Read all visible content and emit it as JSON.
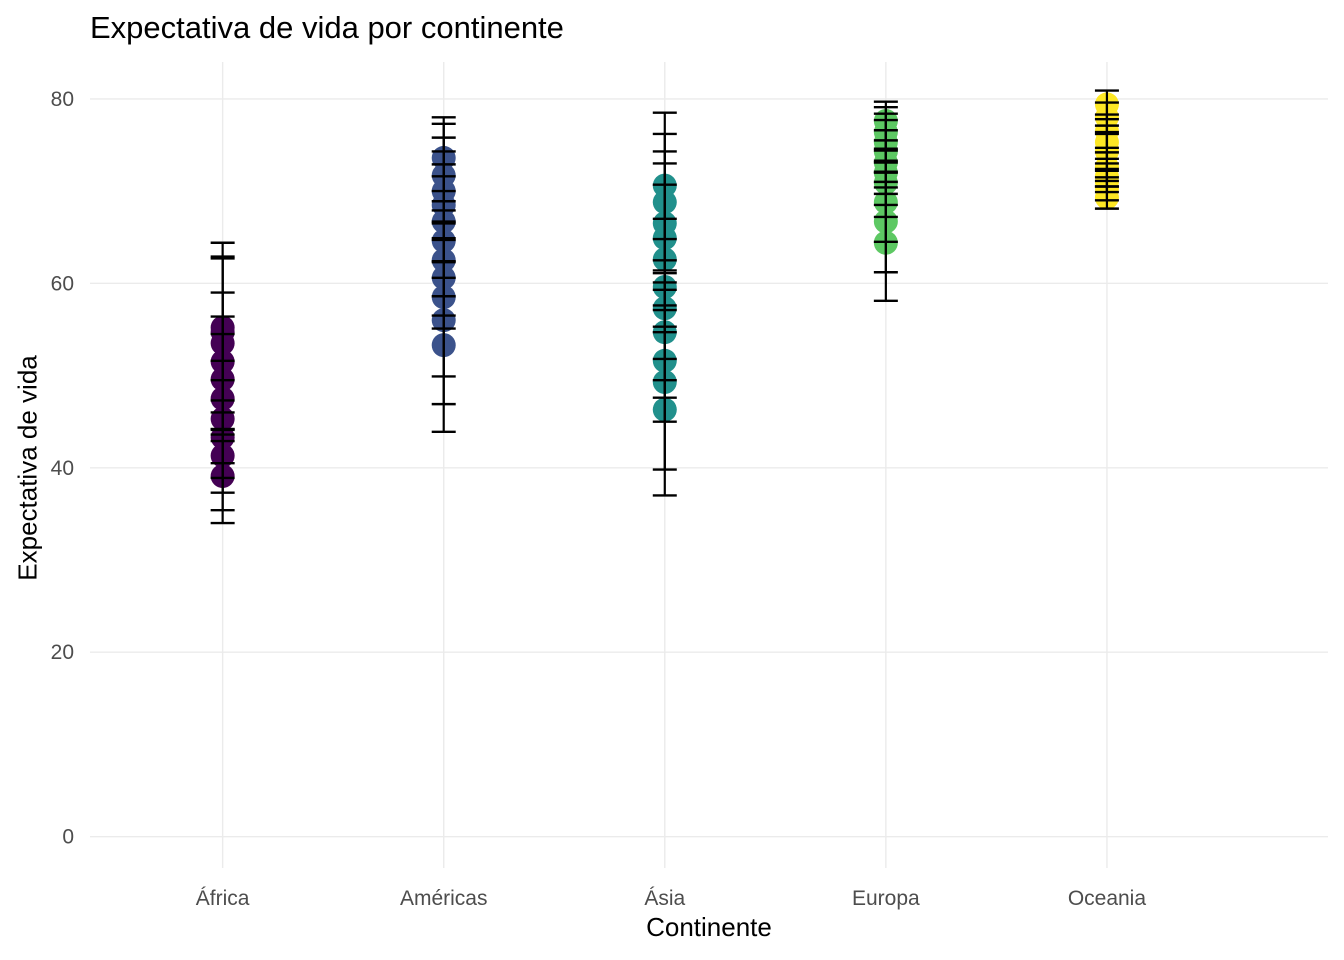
{
  "chart_data": {
    "type": "scatter",
    "title": "Expectativa de vida por continente",
    "xlabel": "Continente",
    "ylabel": "Expectativa de vida",
    "ylim": [
      -3.4,
      84
    ],
    "y_ticks": [
      0,
      20,
      40,
      60,
      80
    ],
    "grid": true,
    "categories": [
      "África",
      "Américas",
      "Ásia",
      "Europa",
      "Oceania"
    ],
    "colors": [
      "#440154",
      "#3b528b",
      "#21908c",
      "#5dc863",
      "#fde725"
    ],
    "series": [
      {
        "category": "África",
        "points": [
          {
            "y": 39.1,
            "low": 34.0,
            "high": 44.2
          },
          {
            "y": 41.3,
            "low": 35.4,
            "high": 47.3
          },
          {
            "y": 43.3,
            "low": 37.3,
            "high": 49.5
          },
          {
            "y": 45.3,
            "low": 38.9,
            "high": 51.6
          },
          {
            "y": 47.5,
            "low": 40.5,
            "high": 54.5
          },
          {
            "y": 49.6,
            "low": 42.9,
            "high": 56.4
          },
          {
            "y": 51.5,
            "low": 43.6,
            "high": 59.0
          },
          {
            "y": 53.5,
            "low": 44.1,
            "high": 62.7
          },
          {
            "y": 54.7,
            "low": 44.2,
            "high": 62.9
          },
          {
            "y": 55.2,
            "low": 46.0,
            "high": 64.4
          }
        ]
      },
      {
        "category": "Américas",
        "points": [
          {
            "y": 53.3,
            "low": 43.9,
            "high": 62.4
          },
          {
            "y": 56.0,
            "low": 46.9,
            "high": 64.9
          },
          {
            "y": 58.5,
            "low": 49.9,
            "high": 66.7
          },
          {
            "y": 60.6,
            "low": 55.1,
            "high": 67.9
          },
          {
            "y": 62.5,
            "low": 56.5,
            "high": 70.0
          },
          {
            "y": 64.6,
            "low": 58.6,
            "high": 71.6
          },
          {
            "y": 66.7,
            "low": 60.6,
            "high": 72.9
          },
          {
            "y": 68.5,
            "low": 62.3,
            "high": 74.3
          },
          {
            "y": 70.0,
            "low": 64.7,
            "high": 75.8
          },
          {
            "y": 71.7,
            "low": 66.5,
            "high": 77.3
          },
          {
            "y": 73.6,
            "low": 68.9,
            "high": 78.0
          }
        ]
      },
      {
        "category": "Ásia",
        "points": [
          {
            "y": 46.3,
            "low": 37.0,
            "high": 54.7
          },
          {
            "y": 49.3,
            "low": 39.8,
            "high": 57.6
          },
          {
            "y": 51.6,
            "low": 45.0,
            "high": 60.1
          },
          {
            "y": 54.7,
            "low": 47.6,
            "high": 61.4
          },
          {
            "y": 57.3,
            "low": 49.5,
            "high": 64.8
          },
          {
            "y": 59.6,
            "low": 51.8,
            "high": 67.0
          },
          {
            "y": 62.6,
            "low": 55.3,
            "high": 70.7
          },
          {
            "y": 64.9,
            "low": 57.1,
            "high": 73.0
          },
          {
            "y": 66.5,
            "low": 59.3,
            "high": 74.3
          },
          {
            "y": 68.8,
            "low": 61.1,
            "high": 76.2
          },
          {
            "y": 70.6,
            "low": 62.5,
            "high": 78.5
          }
        ]
      },
      {
        "category": "Europa",
        "points": [
          {
            "y": 64.4,
            "low": 58.1,
            "high": 70.4
          },
          {
            "y": 66.7,
            "low": 61.2,
            "high": 72.0
          },
          {
            "y": 68.8,
            "low": 64.5,
            "high": 73.3
          },
          {
            "y": 70.9,
            "low": 67.2,
            "high": 74.6
          },
          {
            "y": 72.0,
            "low": 68.5,
            "high": 75.5
          },
          {
            "y": 73.1,
            "low": 69.7,
            "high": 76.6
          },
          {
            "y": 74.3,
            "low": 71.0,
            "high": 77.7
          },
          {
            "y": 75.3,
            "low": 72.1,
            "high": 78.4
          },
          {
            "y": 76.4,
            "low": 73.1,
            "high": 79.1
          },
          {
            "y": 77.6,
            "low": 74.4,
            "high": 79.7
          }
        ]
      },
      {
        "category": "Oceania",
        "points": [
          {
            "y": 69.3,
            "low": 68.1,
            "high": 70.5
          },
          {
            "y": 70.3,
            "low": 69.0,
            "high": 71.5
          },
          {
            "y": 71.0,
            "low": 69.9,
            "high": 72.2
          },
          {
            "y": 71.6,
            "low": 70.5,
            "high": 73.0
          },
          {
            "y": 72.6,
            "low": 71.1,
            "high": 74.2
          },
          {
            "y": 74.3,
            "low": 72.4,
            "high": 76.2
          },
          {
            "y": 75.3,
            "low": 73.5,
            "high": 77.1
          },
          {
            "y": 76.5,
            "low": 74.7,
            "high": 78.3
          },
          {
            "y": 78.0,
            "low": 76.4,
            "high": 79.6
          },
          {
            "y": 79.4,
            "low": 77.8,
            "high": 80.9
          }
        ]
      }
    ]
  }
}
